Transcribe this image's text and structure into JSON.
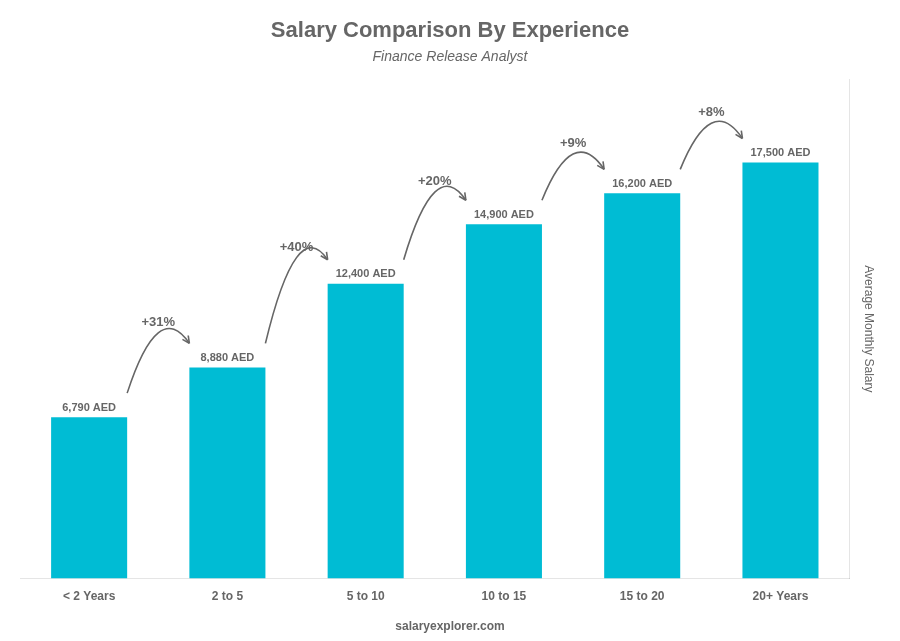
{
  "chart_data": {
    "type": "bar",
    "title": "Salary Comparison By Experience",
    "subtitle": "Finance Release Analyst",
    "ylabel": "Average Monthly Salary",
    "source": "salaryexplorer.com",
    "categories": [
      "< 2 Years",
      "2 to 5",
      "5 to 10",
      "10 to 15",
      "15 to 20",
      "20+ Years"
    ],
    "values": [
      6790,
      8880,
      12400,
      14900,
      16200,
      17500
    ],
    "value_labels": [
      "6,790 AED",
      "8,880 AED",
      "12,400 AED",
      "14,900 AED",
      "16,200 AED",
      "17,500 AED"
    ],
    "data_labels": true,
    "annotations": [
      "+31%",
      "+40%",
      "+20%",
      "+9%",
      "+8%"
    ],
    "color": "#00bcd4",
    "ylim": [
      0,
      21000
    ],
    "grid": false,
    "tick_labels": "x"
  }
}
